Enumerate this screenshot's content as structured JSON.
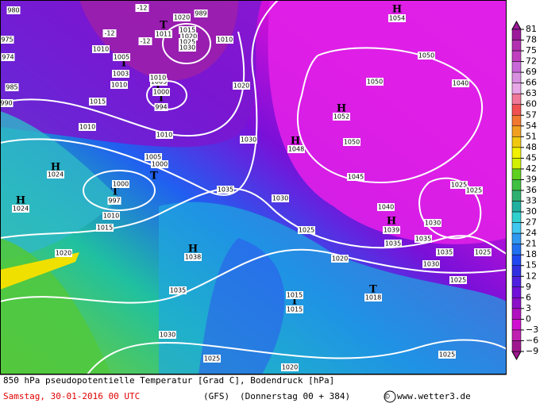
{
  "footer": {
    "title": "850 hPa pseudopotentielle Temperatur [Grad C], Bodendruck [hPa]",
    "date": "Samstag, 30-01-2016  00 UTC",
    "model": "(GFS)",
    "forecast": "(Donnerstag 00 + 384)",
    "copyright": "©",
    "site": "www.wetter3.de"
  },
  "colorbar": {
    "labels": [
      "81",
      "78",
      "75",
      "72",
      "69",
      "66",
      "63",
      "60",
      "57",
      "54",
      "51",
      "48",
      "45",
      "42",
      "39",
      "36",
      "33",
      "30",
      "27",
      "24",
      "21",
      "18",
      "15",
      "12",
      "9",
      "6",
      "3",
      "0",
      "−3",
      "−6",
      "−9"
    ],
    "colors": [
      "#9a1a9a",
      "#b030b0",
      "#c040c0",
      "#c868d8",
      "#d890e0",
      "#e8a8e8",
      "#f07898",
      "#f05050",
      "#f07830",
      "#f0a020",
      "#f0c810",
      "#f0f000",
      "#d0f000",
      "#60d020",
      "#40c040",
      "#30b070",
      "#20b0a0",
      "#30d0d0",
      "#40c8f0",
      "#3098f0",
      "#2070f0",
      "#2048f0",
      "#3030e0",
      "#5020e0",
      "#7010d8",
      "#8c10c8",
      "#b010c0",
      "#d010d0",
      "#c020b0",
      "#a01890"
    ]
  },
  "map": {
    "centers": [
      "T",
      "T",
      "T",
      "H",
      "T",
      "T",
      "T",
      "H",
      "H",
      "H",
      "H",
      "H",
      "H",
      "T",
      "T"
    ],
    "labels": [
      "980",
      "975",
      "974",
      "985",
      "990",
      "1010",
      "1005",
      "1003",
      "1010",
      "1015",
      "1020",
      "1011",
      "1015",
      "1020",
      "1025",
      "1030",
      "989",
      "1010",
      "1000",
      "1005",
      "1010",
      "994",
      "1010",
      "1010",
      "1005",
      "1000",
      "1000",
      "997",
      "1010",
      "1015",
      "1020",
      "1024",
      "1024",
      "1020",
      "1030",
      "1035",
      "1030",
      "1025",
      "1020",
      "1038",
      "1035",
      "1030",
      "1025",
      "1020",
      "1015",
      "1015",
      "1018",
      "1025",
      "1025",
      "1030",
      "1035",
      "1035",
      "1035",
      "1025",
      "1039",
      "1040",
      "1045",
      "1030",
      "1025",
      "1025",
      "1048",
      "1050",
      "1052",
      "1050",
      "1050",
      "1040",
      "1054",
      "-12",
      "-12",
      "-12"
    ]
  }
}
